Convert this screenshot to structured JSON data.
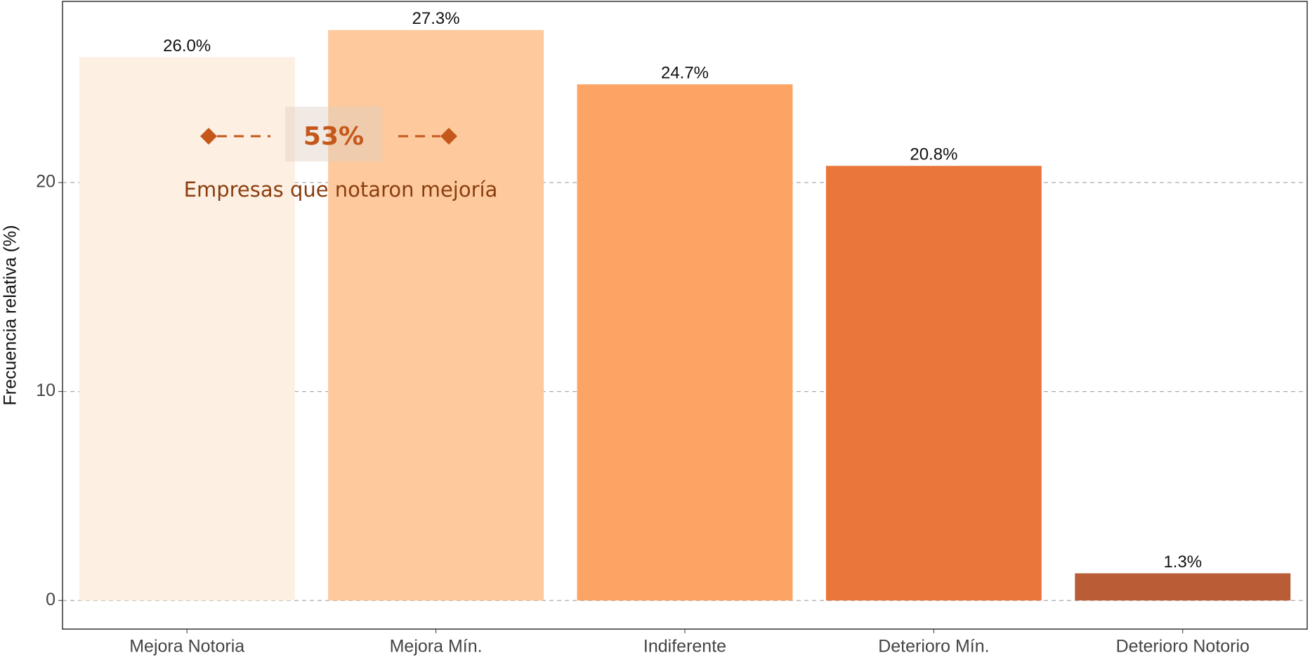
{
  "chart_data": {
    "type": "bar",
    "y_label": "Frecuencia relativa (%)",
    "categories": [
      "Mejora Notoria",
      "Mejora Mín.",
      "Indiferente",
      "Deterioro Mín.",
      "Deterioro Notorio"
    ],
    "values": [
      26.0,
      27.3,
      24.7,
      20.8,
      1.3
    ],
    "value_labels": [
      "26.0%",
      "27.3%",
      "24.7%",
      "20.8%",
      "1.3%"
    ],
    "colors": [
      "#fdefe2",
      "#fdc99d",
      "#fca463",
      "#ea763c",
      "#b85d35"
    ],
    "ylim": [
      -1.37,
      28.67
    ],
    "yticks": [
      0,
      10,
      20
    ],
    "grid": true,
    "annotation": {
      "value_text": "53%",
      "text": "Empresas que notaron mejoría"
    }
  }
}
